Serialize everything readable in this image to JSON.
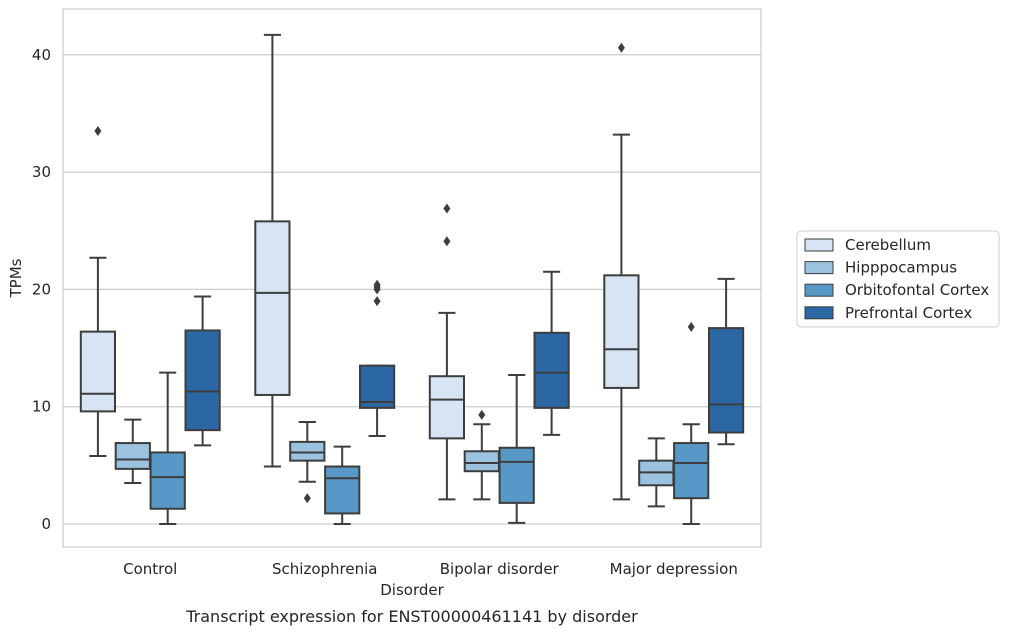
{
  "chart_data": {
    "type": "box",
    "title": "",
    "caption": "Transcript expression for ENST00000461141 by disorder",
    "xlabel": "Disorder",
    "ylabel": "TPMs",
    "ylim": [
      -2,
      44
    ],
    "yticks": [
      0,
      10,
      20,
      30,
      40
    ],
    "grid": "horizontal",
    "legend_position": "right",
    "categories": [
      "Control",
      "Schizophrenia",
      "Bipolar disorder",
      "Major depression"
    ],
    "series": [
      {
        "name": "Cerebellum",
        "color": "#d6e4f3",
        "boxes": [
          {
            "whislo": 5.8,
            "q1": 9.6,
            "med": 11.1,
            "q3": 16.4,
            "whishi": 22.7,
            "fliers": [
              33.5
            ]
          },
          {
            "whislo": 4.9,
            "q1": 11.0,
            "med": 19.7,
            "q3": 25.8,
            "whishi": 41.7,
            "fliers": []
          },
          {
            "whislo": 2.1,
            "q1": 7.3,
            "med": 10.6,
            "q3": 12.6,
            "whishi": 18.0,
            "fliers": [
              24.1,
              26.9
            ]
          },
          {
            "whislo": 2.1,
            "q1": 11.6,
            "med": 14.9,
            "q3": 21.2,
            "whishi": 33.2,
            "fliers": [
              40.6
            ]
          }
        ]
      },
      {
        "name": "Hipppocampus",
        "color": "#9bc3e0",
        "boxes": [
          {
            "whislo": 3.5,
            "q1": 4.7,
            "med": 5.5,
            "q3": 6.9,
            "whishi": 8.9,
            "fliers": []
          },
          {
            "whislo": 3.6,
            "q1": 5.4,
            "med": 6.1,
            "q3": 7.0,
            "whishi": 8.7,
            "fliers": [
              2.2
            ]
          },
          {
            "whislo": 2.1,
            "q1": 4.5,
            "med": 5.2,
            "q3": 6.2,
            "whishi": 8.5,
            "fliers": [
              9.3
            ]
          },
          {
            "whislo": 1.5,
            "q1": 3.3,
            "med": 4.4,
            "q3": 5.4,
            "whishi": 7.3,
            "fliers": []
          }
        ]
      },
      {
        "name": "Orbitofontal Cortex",
        "color": "#5898c6",
        "boxes": [
          {
            "whislo": 0.0,
            "q1": 1.3,
            "med": 4.0,
            "q3": 6.1,
            "whishi": 12.9,
            "fliers": []
          },
          {
            "whislo": 0.0,
            "q1": 0.9,
            "med": 3.9,
            "q3": 4.9,
            "whishi": 6.6,
            "fliers": []
          },
          {
            "whislo": 0.1,
            "q1": 1.8,
            "med": 5.3,
            "q3": 6.5,
            "whishi": 12.7,
            "fliers": []
          },
          {
            "whislo": 0.0,
            "q1": 2.2,
            "med": 5.2,
            "q3": 6.9,
            "whishi": 8.5,
            "fliers": [
              16.8
            ]
          }
        ]
      },
      {
        "name": "Prefrontal Cortex",
        "color": "#2a67a4",
        "boxes": [
          {
            "whislo": 6.7,
            "q1": 8.0,
            "med": 11.3,
            "q3": 16.5,
            "whishi": 19.4,
            "fliers": []
          },
          {
            "whislo": 7.5,
            "q1": 9.9,
            "med": 10.4,
            "q3": 13.5,
            "whishi": 13.5,
            "fliers": [
              19.0,
              20.0,
              20.2,
              20.4
            ]
          },
          {
            "whislo": 7.6,
            "q1": 9.9,
            "med": 12.9,
            "q3": 16.3,
            "whishi": 21.5,
            "fliers": []
          },
          {
            "whislo": 6.8,
            "q1": 7.8,
            "med": 10.2,
            "q3": 16.7,
            "whishi": 20.9,
            "fliers": []
          }
        ]
      }
    ]
  }
}
